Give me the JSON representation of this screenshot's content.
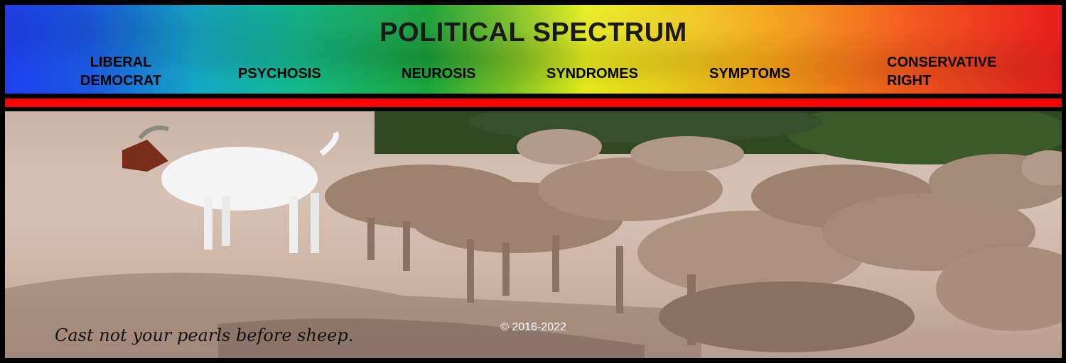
{
  "header": {
    "title": "POLITICAL SPECTRUM",
    "nav": [
      {
        "line1": "LIBERAL",
        "line2": "DEMOCRAT"
      },
      {
        "line1": "PSYCHOSIS",
        "line2": ""
      },
      {
        "line1": "NEUROSIS",
        "line2": ""
      },
      {
        "line1": "SYNDROMES",
        "line2": ""
      },
      {
        "line1": "SYMPTOMS",
        "line2": ""
      },
      {
        "line1": "CONSERVATIVE",
        "line2": "RIGHT"
      }
    ]
  },
  "photo": {
    "caption": "Cast not your pearls before sheep.",
    "copyright": "© 2016-2022"
  },
  "colors": {
    "accent_bar": "#ff0000",
    "gradient_left": "#1f3ff0",
    "gradient_right": "#e81e1e"
  }
}
